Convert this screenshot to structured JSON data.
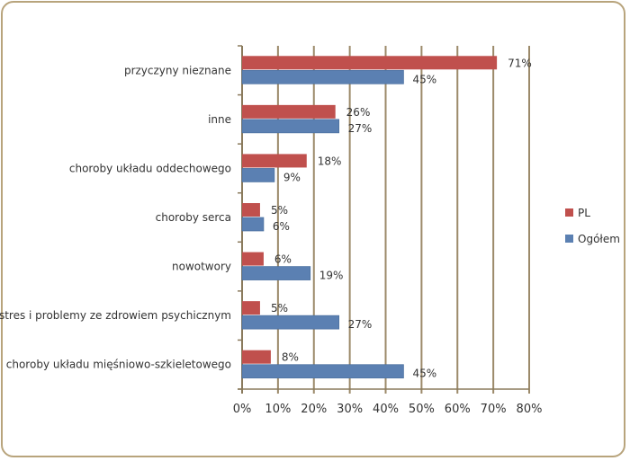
{
  "chart_data": {
    "type": "bar",
    "orientation": "horizontal",
    "title": "",
    "xlabel": "",
    "ylabel": "",
    "categories": [
      "przyczyny nieznane",
      "inne",
      "choroby układu oddechowego",
      "choroby serca",
      "nowotwory",
      "stres i problemy ze zdrowiem psychicznym",
      "choroby układu mięśniowo-szkieletowego"
    ],
    "series": [
      {
        "name": "PL",
        "color": "#c0504d",
        "values": [
          71,
          26,
          18,
          5,
          6,
          5,
          8
        ],
        "labels": [
          "71%",
          "26%",
          "18%",
          "5%",
          "6%",
          "5%",
          "8%"
        ]
      },
      {
        "name": "Ogółem",
        "color": "#5b80b2",
        "values": [
          45,
          27,
          9,
          6,
          19,
          27,
          45
        ],
        "labels": [
          "45%",
          "27%",
          "9%",
          "6%",
          "19%",
          "27%",
          "45%"
        ]
      }
    ],
    "xlim": [
      0,
      80
    ],
    "xticks": [
      0,
      10,
      20,
      30,
      40,
      50,
      60,
      70,
      80
    ],
    "xtick_labels": [
      "0%",
      "10%",
      "20%",
      "30%",
      "40%",
      "50%",
      "60%",
      "70%",
      "80%"
    ],
    "grid": true,
    "gridline_color": "#9c8a6a",
    "legend_position": "right"
  }
}
